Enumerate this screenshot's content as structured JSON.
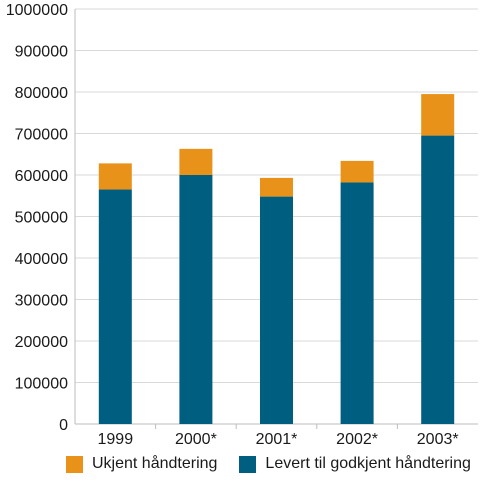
{
  "chart_data": {
    "type": "bar",
    "stacked": true,
    "title": "",
    "xlabel": "",
    "ylabel": "",
    "categories": [
      "1999",
      "2000*",
      "2001*",
      "2002*",
      "2003*"
    ],
    "series": [
      {
        "name": "Levert til godkjent håndtering",
        "color": "#005f80",
        "values": [
          565000,
          600000,
          548000,
          582000,
          695000
        ]
      },
      {
        "name": "Ukjent håndtering",
        "color": "#e8921a",
        "values": [
          63000,
          63000,
          45000,
          52000,
          100000
        ]
      }
    ],
    "ylim": [
      0,
      1000000
    ],
    "yticks": [
      "0",
      "100000",
      "200000",
      "300000",
      "400000",
      "500000",
      "600000",
      "700000",
      "800000",
      "900000",
      "1000000"
    ],
    "grid": true,
    "legend_position": "bottom",
    "legend_order": [
      1,
      0
    ]
  }
}
